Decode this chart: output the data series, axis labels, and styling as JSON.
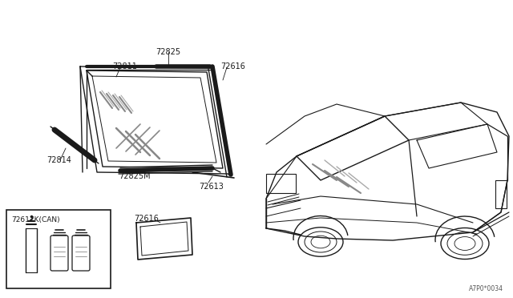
{
  "bg_color": "#ffffff",
  "line_color": "#1a1a1a",
  "fig_width": 6.4,
  "fig_height": 3.72,
  "dpi": 100,
  "watermark": "A7P0*0034",
  "label_72811": "72811",
  "label_72825": "72825",
  "label_72616a": "72616",
  "label_72814": "72814",
  "label_72825M": "72825M",
  "label_72613": "72613",
  "label_72616b": "72616",
  "label_72617K": "72617K(CAN)"
}
